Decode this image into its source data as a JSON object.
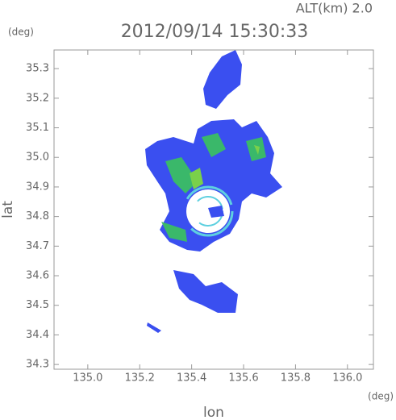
{
  "chart_data": {
    "type": "radar-map",
    "title": "2012/09/14 15:30:33",
    "annotation": "ALT(km) 2.0",
    "x_label": "lon",
    "x_unit": "(deg)",
    "y_label": "lat",
    "y_unit": "(deg)",
    "xlim": [
      134.87,
      136.1
    ],
    "xticks": [
      {
        "value": 135.0,
        "label": "135.0"
      },
      135.2,
      135.4,
      135.6,
      135.8,
      {
        "value": 136.0,
        "label": "136.0"
      }
    ],
    "ylim": [
      34.284,
      35.363
    ],
    "yticks": [
      34.3,
      34.4,
      34.5,
      34.6,
      34.7,
      34.8,
      34.9,
      {
        "value": 35.0,
        "label": "35.0"
      },
      35.1,
      35.2,
      35.3
    ]
  }
}
